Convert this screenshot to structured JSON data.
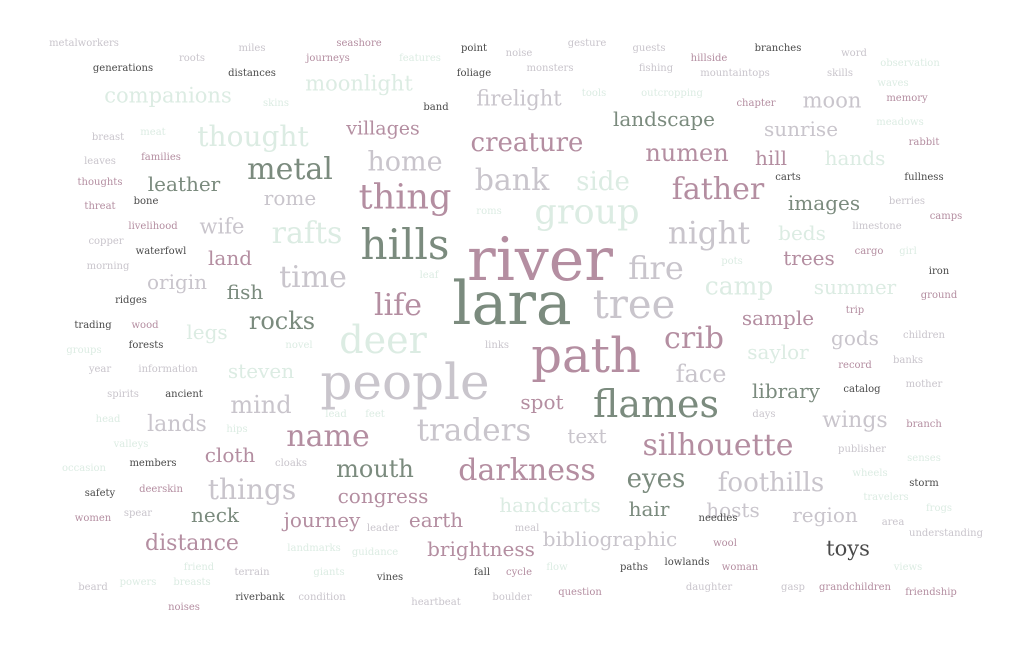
{
  "colors": {
    "gray_green": "#7b8b7e",
    "mauve": "#b48ea1",
    "light_gray": "#c9c5cc",
    "mint": "#dcece3",
    "dark": "#4a4a4a"
  },
  "words": [
    {
      "text": "metalworkers",
      "color": "light_gray"
    },
    {
      "text": "roots",
      "color": "light_gray"
    },
    {
      "text": "miles",
      "color": "light_gray"
    },
    {
      "text": "seashore",
      "color": "mauve"
    },
    {
      "text": "point",
      "color": "dark"
    },
    {
      "text": "noise",
      "color": "light_gray"
    },
    {
      "text": "gesture",
      "color": "light_gray"
    },
    {
      "text": "guests",
      "color": "light_gray"
    },
    {
      "text": "hillside",
      "color": "mauve"
    },
    {
      "text": "branches",
      "color": "dark"
    },
    {
      "text": "word",
      "color": "light_gray"
    },
    {
      "text": "observation",
      "color": "mint"
    },
    {
      "text": "journeys",
      "color": "mauve"
    },
    {
      "text": "features",
      "color": "mint"
    },
    {
      "text": "generations",
      "color": "dark"
    },
    {
      "text": "distances",
      "color": "dark"
    },
    {
      "text": "foliage",
      "color": "dark"
    },
    {
      "text": "monsters",
      "color": "light_gray"
    },
    {
      "text": "fishing",
      "color": "light_gray"
    },
    {
      "text": "mountaintops",
      "color": "light_gray"
    },
    {
      "text": "skills",
      "color": "light_gray"
    },
    {
      "text": "waves",
      "color": "mint"
    },
    {
      "text": "companions",
      "color": "mint"
    },
    {
      "text": "moonlight",
      "color": "mint"
    },
    {
      "text": "tools",
      "color": "mint"
    },
    {
      "text": "outcropping",
      "color": "mint"
    },
    {
      "text": "memory",
      "color": "mauve"
    },
    {
      "text": "skins",
      "color": "mint"
    },
    {
      "text": "band",
      "color": "dark"
    },
    {
      "text": "firelight",
      "color": "light_gray"
    },
    {
      "text": "chapter",
      "color": "mauve"
    },
    {
      "text": "moon",
      "color": "light_gray"
    },
    {
      "text": "meadows",
      "color": "mint"
    },
    {
      "text": "breast",
      "color": "light_gray"
    },
    {
      "text": "meat",
      "color": "mint"
    },
    {
      "text": "thought",
      "color": "mint"
    },
    {
      "text": "villages",
      "color": "mauve"
    },
    {
      "text": "landscape",
      "color": "gray_green"
    },
    {
      "text": "sunrise",
      "color": "light_gray"
    },
    {
      "text": "rabbit",
      "color": "mauve"
    },
    {
      "text": "leaves",
      "color": "light_gray"
    },
    {
      "text": "families",
      "color": "mauve"
    },
    {
      "text": "creature",
      "color": "mauve"
    },
    {
      "text": "numen",
      "color": "mauve"
    },
    {
      "text": "hands",
      "color": "mint"
    },
    {
      "text": "home",
      "color": "light_gray"
    },
    {
      "text": "hill",
      "color": "mauve"
    },
    {
      "text": "metal",
      "color": "gray_green"
    },
    {
      "text": "carts",
      "color": "dark"
    },
    {
      "text": "fullness",
      "color": "dark"
    },
    {
      "text": "thoughts",
      "color": "mauve"
    },
    {
      "text": "leather",
      "color": "gray_green"
    },
    {
      "text": "bank",
      "color": "light_gray"
    },
    {
      "text": "side",
      "color": "mint"
    },
    {
      "text": "father",
      "color": "mauve"
    },
    {
      "text": "bone",
      "color": "dark"
    },
    {
      "text": "thing",
      "color": "mauve"
    },
    {
      "text": "rome",
      "color": "light_gray"
    },
    {
      "text": "images",
      "color": "gray_green"
    },
    {
      "text": "berries",
      "color": "light_gray"
    },
    {
      "text": "threat",
      "color": "mauve"
    },
    {
      "text": "group",
      "color": "mint"
    },
    {
      "text": "camps",
      "color": "mauve"
    },
    {
      "text": "roms",
      "color": "mint"
    },
    {
      "text": "limestone",
      "color": "light_gray"
    },
    {
      "text": "livelihood",
      "color": "mauve"
    },
    {
      "text": "wife",
      "color": "light_gray"
    },
    {
      "text": "rafts",
      "color": "mint"
    },
    {
      "text": "hills",
      "color": "gray_green"
    },
    {
      "text": "night",
      "color": "light_gray"
    },
    {
      "text": "beds",
      "color": "mint"
    },
    {
      "text": "copper",
      "color": "light_gray"
    },
    {
      "text": "waterfowl",
      "color": "dark"
    },
    {
      "text": "river",
      "color": "mauve"
    },
    {
      "text": "cargo",
      "color": "mauve"
    },
    {
      "text": "girl",
      "color": "mint"
    },
    {
      "text": "land",
      "color": "mauve"
    },
    {
      "text": "trees",
      "color": "mauve"
    },
    {
      "text": "morning",
      "color": "light_gray"
    },
    {
      "text": "pots",
      "color": "mint"
    },
    {
      "text": "time",
      "color": "light_gray"
    },
    {
      "text": "fire",
      "color": "light_gray"
    },
    {
      "text": "leaf",
      "color": "mint"
    },
    {
      "text": "iron",
      "color": "dark"
    },
    {
      "text": "origin",
      "color": "light_gray"
    },
    {
      "text": "camp",
      "color": "mint"
    },
    {
      "text": "summer",
      "color": "mint"
    },
    {
      "text": "fish",
      "color": "gray_green"
    },
    {
      "text": "lara",
      "color": "gray_green"
    },
    {
      "text": "ground",
      "color": "mauve"
    },
    {
      "text": "ridges",
      "color": "dark"
    },
    {
      "text": "life",
      "color": "mauve"
    },
    {
      "text": "tree",
      "color": "light_gray"
    },
    {
      "text": "trip",
      "color": "mauve"
    },
    {
      "text": "rocks",
      "color": "gray_green"
    },
    {
      "text": "sample",
      "color": "mauve"
    },
    {
      "text": "trading",
      "color": "dark"
    },
    {
      "text": "wood",
      "color": "mauve"
    },
    {
      "text": "legs",
      "color": "mint"
    },
    {
      "text": "deer",
      "color": "mint"
    },
    {
      "text": "crib",
      "color": "mauve"
    },
    {
      "text": "gods",
      "color": "light_gray"
    },
    {
      "text": "children",
      "color": "light_gray"
    },
    {
      "text": "groups",
      "color": "mint"
    },
    {
      "text": "forests",
      "color": "dark"
    },
    {
      "text": "novel",
      "color": "mint"
    },
    {
      "text": "links",
      "color": "light_gray"
    },
    {
      "text": "path",
      "color": "mauve"
    },
    {
      "text": "saylor",
      "color": "mint"
    },
    {
      "text": "banks",
      "color": "light_gray"
    },
    {
      "text": "year",
      "color": "light_gray"
    },
    {
      "text": "information",
      "color": "light_gray"
    },
    {
      "text": "steven",
      "color": "mint"
    },
    {
      "text": "record",
      "color": "mauve"
    },
    {
      "text": "people",
      "color": "light_gray"
    },
    {
      "text": "face",
      "color": "light_gray"
    },
    {
      "text": "mother",
      "color": "light_gray"
    },
    {
      "text": "spirits",
      "color": "light_gray"
    },
    {
      "text": "ancient",
      "color": "dark"
    },
    {
      "text": "library",
      "color": "gray_green"
    },
    {
      "text": "catalog",
      "color": "dark"
    },
    {
      "text": "mind",
      "color": "light_gray"
    },
    {
      "text": "spot",
      "color": "mauve"
    },
    {
      "text": "flames",
      "color": "gray_green"
    },
    {
      "text": "head",
      "color": "mint"
    },
    {
      "text": "lead",
      "color": "mint"
    },
    {
      "text": "feet",
      "color": "mint"
    },
    {
      "text": "days",
      "color": "light_gray"
    },
    {
      "text": "wings",
      "color": "light_gray"
    },
    {
      "text": "lands",
      "color": "light_gray"
    },
    {
      "text": "traders",
      "color": "light_gray"
    },
    {
      "text": "branch",
      "color": "mauve"
    },
    {
      "text": "hips",
      "color": "mint"
    },
    {
      "text": "text",
      "color": "light_gray"
    },
    {
      "text": "name",
      "color": "mauve"
    },
    {
      "text": "valleys",
      "color": "mint"
    },
    {
      "text": "silhouette",
      "color": "mauve"
    },
    {
      "text": "publisher",
      "color": "light_gray"
    },
    {
      "text": "cloth",
      "color": "mauve"
    },
    {
      "text": "senses",
      "color": "mint"
    },
    {
      "text": "occasion",
      "color": "mint"
    },
    {
      "text": "members",
      "color": "dark"
    },
    {
      "text": "cloaks",
      "color": "light_gray"
    },
    {
      "text": "mouth",
      "color": "gray_green"
    },
    {
      "text": "darkness",
      "color": "mauve"
    },
    {
      "text": "eyes",
      "color": "gray_green"
    },
    {
      "text": "wheels",
      "color": "mint"
    },
    {
      "text": "things",
      "color": "light_gray"
    },
    {
      "text": "foothills",
      "color": "light_gray"
    },
    {
      "text": "storm",
      "color": "dark"
    },
    {
      "text": "safety",
      "color": "dark"
    },
    {
      "text": "deerskin",
      "color": "mauve"
    },
    {
      "text": "congress",
      "color": "mauve"
    },
    {
      "text": "travelers",
      "color": "mint"
    },
    {
      "text": "handcarts",
      "color": "mint"
    },
    {
      "text": "hair",
      "color": "gray_green"
    },
    {
      "text": "hosts",
      "color": "light_gray"
    },
    {
      "text": "region",
      "color": "light_gray"
    },
    {
      "text": "frogs",
      "color": "mint"
    },
    {
      "text": "women",
      "color": "mauve"
    },
    {
      "text": "spear",
      "color": "light_gray"
    },
    {
      "text": "neck",
      "color": "gray_green"
    },
    {
      "text": "journey",
      "color": "mauve"
    },
    {
      "text": "earth",
      "color": "mauve"
    },
    {
      "text": "needles",
      "color": "dark"
    },
    {
      "text": "area",
      "color": "light_gray"
    },
    {
      "text": "leader",
      "color": "light_gray"
    },
    {
      "text": "meal",
      "color": "light_gray"
    },
    {
      "text": "understanding",
      "color": "light_gray"
    },
    {
      "text": "distance",
      "color": "mauve"
    },
    {
      "text": "bibliographic",
      "color": "light_gray"
    },
    {
      "text": "wool",
      "color": "mauve"
    },
    {
      "text": "landmarks",
      "color": "mint"
    },
    {
      "text": "guidance",
      "color": "mint"
    },
    {
      "text": "brightness",
      "color": "mauve"
    },
    {
      "text": "toys",
      "color": "dark"
    },
    {
      "text": "lowlands",
      "color": "dark"
    },
    {
      "text": "woman",
      "color": "mauve"
    },
    {
      "text": "views",
      "color": "mint"
    },
    {
      "text": "friend",
      "color": "mint"
    },
    {
      "text": "terrain",
      "color": "light_gray"
    },
    {
      "text": "giants",
      "color": "mint"
    },
    {
      "text": "vines",
      "color": "dark"
    },
    {
      "text": "fall",
      "color": "dark"
    },
    {
      "text": "cycle",
      "color": "mauve"
    },
    {
      "text": "flow",
      "color": "mint"
    },
    {
      "text": "paths",
      "color": "dark"
    },
    {
      "text": "beard",
      "color": "light_gray"
    },
    {
      "text": "powers",
      "color": "mint"
    },
    {
      "text": "breasts",
      "color": "mint"
    },
    {
      "text": "daughter",
      "color": "light_gray"
    },
    {
      "text": "gasp",
      "color": "light_gray"
    },
    {
      "text": "grandchildren",
      "color": "mauve"
    },
    {
      "text": "friendship",
      "color": "mauve"
    },
    {
      "text": "noises",
      "color": "mauve"
    },
    {
      "text": "riverbank",
      "color": "dark"
    },
    {
      "text": "condition",
      "color": "light_gray"
    },
    {
      "text": "heartbeat",
      "color": "light_gray"
    },
    {
      "text": "boulder",
      "color": "light_gray"
    },
    {
      "text": "question",
      "color": "mauve"
    }
  ]
}
